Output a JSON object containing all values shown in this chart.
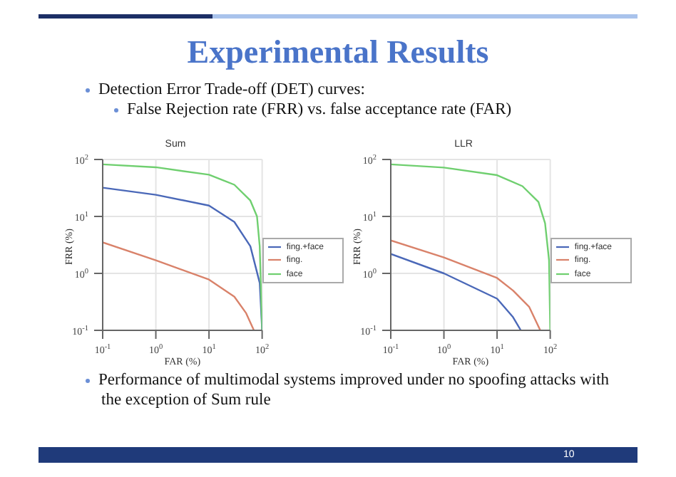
{
  "chart_data": [
    {
      "type": "other",
      "title": "Experimental Results",
      "annotations": [
        "Detection Error Trade-off (DET) curves:",
        "False Rejection rate (FRR) vs. false acceptance rate (FAR)"
      ]
    },
    {
      "type": "line",
      "title": "Sum",
      "xlabel": "FAR (%)",
      "ylabel": "FRR (%)",
      "log": "xy",
      "grid": true,
      "legend": "right",
      "xlim": [
        0.1,
        100
      ],
      "ylim": [
        0.1,
        100
      ],
      "xticks": [
        {
          "value": 0.1,
          "label": "10$^{-1}$"
        },
        {
          "value": 1,
          "label": "10$^{0}$"
        },
        {
          "value": 10,
          "label": "10$^{1}$"
        },
        {
          "value": 100,
          "label": "10$^{2}$"
        }
      ],
      "yticks": [
        {
          "value": 0.1,
          "label": "10$^{-1}$"
        },
        {
          "value": 1,
          "label": "10$^{0}$"
        },
        {
          "value": 10,
          "label": "10$^{1}$"
        },
        {
          "value": 100,
          "label": "10$^{2}$"
        }
      ],
      "series": [
        {
          "name": "fing.+face",
          "color": "#4a68b8",
          "x": [
            0.1,
            1,
            10,
            30,
            60,
            90,
            100
          ],
          "values": [
            32,
            24,
            15.5,
            8,
            3,
            0.68,
            0.1
          ]
        },
        {
          "name": "fing.",
          "color": "#d9826a",
          "x": [
            0.1,
            1,
            10,
            30,
            50,
            70
          ],
          "values": [
            3.5,
            1.7,
            0.78,
            0.39,
            0.2,
            0.1
          ]
        },
        {
          "name": "face",
          "color": "#6fcf6f",
          "x": [
            0.1,
            1,
            10,
            30,
            60,
            80,
            90,
            100
          ],
          "values": [
            82,
            73,
            54,
            36,
            19,
            10,
            3,
            0.1
          ]
        }
      ]
    },
    {
      "type": "line",
      "title": "LLR",
      "xlabel": "FAR (%)",
      "ylabel": "FRR (%)",
      "log": "xy",
      "grid": true,
      "legend": "right",
      "xlim": [
        0.1,
        100
      ],
      "ylim": [
        0.1,
        100
      ],
      "xticks": [
        {
          "value": 0.1,
          "label": "10$^{-1}$"
        },
        {
          "value": 1,
          "label": "10$^{0}$"
        },
        {
          "value": 10,
          "label": "10$^{1}$"
        },
        {
          "value": 100,
          "label": "10$^{2}$"
        }
      ],
      "yticks": [
        {
          "value": 0.1,
          "label": "10$^{-1}$"
        },
        {
          "value": 1,
          "label": "10$^{0}$"
        },
        {
          "value": 10,
          "label": "10$^{1}$"
        },
        {
          "value": 100,
          "label": "10$^{2}$"
        }
      ],
      "series": [
        {
          "name": "fing.+face",
          "color": "#4a68b8",
          "x": [
            0.1,
            1,
            10,
            20,
            28
          ],
          "values": [
            2.2,
            1,
            0.36,
            0.17,
            0.1
          ]
        },
        {
          "name": "fing.",
          "color": "#d9826a",
          "x": [
            0.1,
            1,
            10,
            20,
            40,
            65
          ],
          "values": [
            3.8,
            1.9,
            0.83,
            0.5,
            0.26,
            0.1
          ]
        },
        {
          "name": "face",
          "color": "#6fcf6f",
          "x": [
            0.1,
            1,
            10,
            30,
            60,
            80,
            95,
            100
          ],
          "values": [
            82,
            72,
            53,
            34,
            18,
            7.6,
            1.7,
            0.1
          ]
        }
      ]
    },
    {
      "type": "other",
      "annotations": [
        "Performance of multimodal systems improved under no spoofing attacks with the exception of Sum rule",
        "10"
      ]
    }
  ]
}
